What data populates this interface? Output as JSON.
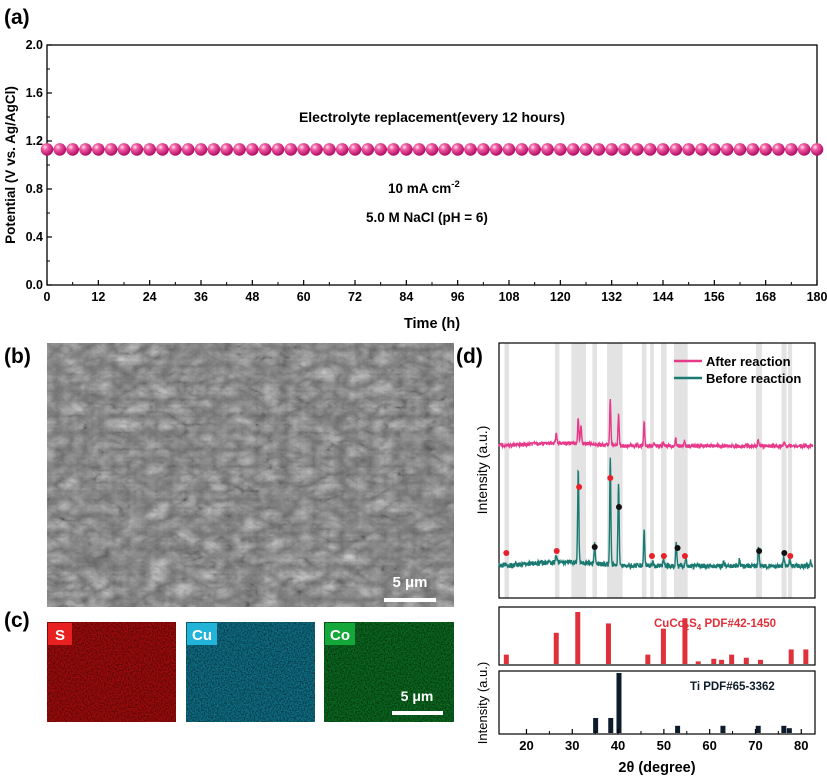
{
  "panel_labels": {
    "a": "(a)",
    "b": "(b)",
    "c": "(c)",
    "d": "(d)"
  },
  "colors": {
    "pink": "#e8388a",
    "teal": "#1a7a72",
    "ref_red": "#e0303a",
    "ref_dark": "#0d1b2a",
    "marker_red": "#e8202a",
    "marker_black": "#111111",
    "band_gray": "#e3e3e3",
    "eds_s": "#c01010",
    "eds_cu": "#1aa8c8",
    "eds_co": "#10a040"
  },
  "chart_data": [
    {
      "type": "line",
      "panel": "(a)",
      "title": "",
      "xlabel": "Time (h)",
      "ylabel": "Potential (V vs. Ag/AgCl)",
      "xlim": [
        0,
        180
      ],
      "ylim": [
        0.0,
        2.0
      ],
      "xticks": [
        0,
        12,
        24,
        36,
        48,
        60,
        72,
        84,
        96,
        108,
        120,
        132,
        144,
        156,
        168,
        180
      ],
      "yticks": [
        "0.0",
        "0.4",
        "0.8",
        "1.2",
        "1.6",
        "2.0"
      ],
      "series": [
        {
          "name": "Potential",
          "marker": "sphere",
          "x_start": 0,
          "x_step": 3,
          "count": 61,
          "value": 1.13
        }
      ],
      "annotations": [
        "Electrolyte replacement(every 12 hours)",
        "10 mA cm",
        "5.0 M NaCl (pH = 6)"
      ],
      "annotation_sup": "-2"
    },
    {
      "type": "line",
      "panel": "(d)",
      "xlabel": "2θ (degree)",
      "ylabel": "Intensity (a.u.)",
      "xlim": [
        14,
        83
      ],
      "xticks": [
        20,
        30,
        40,
        50,
        60,
        70,
        80
      ],
      "series": [
        {
          "name": "After reaction",
          "baseline": 0.3,
          "peaks": [
            [
              26.5,
              0.15
            ],
            [
              31.3,
              0.42
            ],
            [
              31.9,
              0.3
            ],
            [
              38.3,
              0.75
            ],
            [
              40.1,
              0.5
            ],
            [
              45.7,
              0.4
            ],
            [
              47.8,
              0.05
            ],
            [
              49.9,
              0.05
            ],
            [
              52.6,
              0.12
            ],
            [
              54.5,
              0.08
            ],
            [
              70.6,
              0.1
            ],
            [
              76.3,
              0.05
            ]
          ]
        },
        {
          "name": "Before reaction",
          "baseline": 0.3,
          "peaks": [
            [
              26.5,
              0.1
            ],
            [
              31.3,
              1.2
            ],
            [
              34.9,
              0.25
            ],
            [
              38.3,
              1.35
            ],
            [
              40.1,
              1.05
            ],
            [
              45.7,
              0.45
            ],
            [
              47.6,
              0.05
            ],
            [
              49.9,
              0.1
            ],
            [
              52.7,
              0.32
            ],
            [
              54.8,
              0.1
            ],
            [
              63.1,
              0.06
            ],
            [
              66.5,
              0.08
            ],
            [
              70.7,
              0.25
            ],
            [
              76.2,
              0.12
            ],
            [
              77.5,
              0.08
            ],
            [
              82.0,
              0.06
            ]
          ]
        }
      ],
      "markers": [
        {
          "x": 15.6,
          "color": "red"
        },
        {
          "x": 26.6,
          "color": "red"
        },
        {
          "x": 31.5,
          "color": "red"
        },
        {
          "x": 34.9,
          "color": "black"
        },
        {
          "x": 38.3,
          "color": "red"
        },
        {
          "x": 40.2,
          "color": "black"
        },
        {
          "x": 47.4,
          "color": "red"
        },
        {
          "x": 50.0,
          "color": "red"
        },
        {
          "x": 53.0,
          "color": "black"
        },
        {
          "x": 54.6,
          "color": "red"
        },
        {
          "x": 70.8,
          "color": "black"
        },
        {
          "x": 76.3,
          "color": "black"
        },
        {
          "x": 77.6,
          "color": "red"
        }
      ],
      "gray_bands": [
        [
          15.2,
          16.2
        ],
        [
          26.2,
          27.2
        ],
        [
          29.8,
          33.0
        ],
        [
          34.4,
          35.4
        ],
        [
          37.6,
          41.0
        ],
        [
          45.2,
          46.2
        ],
        [
          47.0,
          47.8
        ],
        [
          49.4,
          50.6
        ],
        [
          52.2,
          55.2
        ],
        [
          70.1,
          71.4
        ],
        [
          75.7,
          76.8
        ],
        [
          77.1,
          78.0
        ]
      ],
      "legend": [
        "After reaction",
        "Before reaction"
      ],
      "legend_position": "top-right"
    },
    {
      "type": "bar",
      "panel": "(d) reference 1",
      "name": "CuCo2S4 PDF#42-1450",
      "label_main": "CuCo",
      "label_sub1": "2",
      "label_mid": "S",
      "label_sub2": "4",
      "label_tail": " PDF#42-1450",
      "x": [
        15.6,
        26.5,
        31.2,
        37.9,
        46.5,
        49.9,
        54.6,
        57.5,
        60.9,
        62.6,
        64.8,
        68.0,
        71.1,
        77.8,
        81.0
      ],
      "values": [
        18,
        60,
        100,
        78,
        18,
        68,
        88,
        5,
        10,
        8,
        18,
        12,
        8,
        28,
        28
      ]
    },
    {
      "type": "bar",
      "panel": "(d) reference 2",
      "name": "Ti PDF#65-3362",
      "x": [
        35.1,
        38.4,
        40.2,
        53.0,
        62.9,
        70.6,
        76.2,
        77.4
      ],
      "values": [
        25,
        25,
        100,
        12,
        12,
        12,
        12,
        8
      ]
    }
  ],
  "sem": {
    "scale_bar": "5 μm"
  },
  "eds": {
    "maps": [
      {
        "element": "S"
      },
      {
        "element": "Cu"
      },
      {
        "element": "Co"
      }
    ],
    "scale_bar": "5 μm"
  }
}
